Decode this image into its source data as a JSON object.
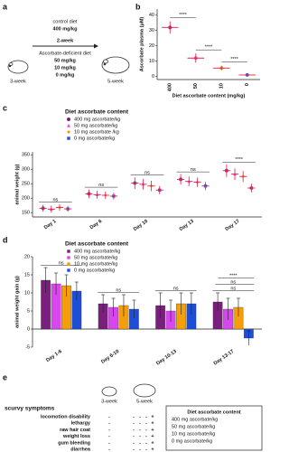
{
  "panel_a": {
    "label": "a",
    "start": "3-week",
    "end": "5-week",
    "control_title": "control diet",
    "control_dose": "400 mg/kg",
    "duration": "2-week",
    "deficient_title": "Ascorbate-deficient diet",
    "deficient_doses": [
      "50 mg/kg",
      "10 mg/kg",
      "0 mg/kg"
    ],
    "control_color": "#7b1f7e",
    "dose_colors": [
      "#d946ef",
      "#f59e0b",
      "#1d4ed8"
    ]
  },
  "chart_data": [
    {
      "type": "dot",
      "label": "b",
      "xlabel": "Diet ascorbate content (mg/kg)",
      "ylabel": "Ascorbate plasma (μM)",
      "categories": [
        "400",
        "50",
        "10",
        "0"
      ],
      "series": [
        {
          "values": [
            32,
            12,
            5.5,
            1
          ],
          "errors": [
            4,
            3,
            1.5,
            0.8
          ]
        }
      ],
      "colors": [
        "#7b1f7e",
        "#d946ef",
        "#f59e0b",
        "#1d4ed8"
      ],
      "ylim": [
        -2,
        44
      ],
      "yticks": [
        0,
        10,
        20,
        30,
        40
      ],
      "annotations": [
        "****",
        "****",
        "****"
      ]
    },
    {
      "type": "dot",
      "label": "c",
      "ylabel": "animal weight (g)",
      "legend_title": "Diet ascorbate content",
      "categories": [
        "Day 1",
        "Day 6",
        "Day 10",
        "Day 13",
        "Day 17"
      ],
      "series": [
        {
          "name": "400 mg ascorbate/kg",
          "color": "#7b1f7e",
          "marker": "circle",
          "values": [
            165,
            215,
            252,
            265,
            295
          ],
          "errors": [
            12,
            15,
            20,
            18,
            22
          ]
        },
        {
          "name": "50 mg ascorbate/kg",
          "color": "#d946ef",
          "marker": "triangle",
          "values": [
            162,
            212,
            248,
            258,
            283
          ],
          "errors": [
            12,
            14,
            18,
            17,
            20
          ]
        },
        {
          "name": "10 mg ascorbate /kg",
          "color": "#f59e0b",
          "marker": "diamond",
          "values": [
            168,
            210,
            242,
            255,
            275
          ],
          "errors": [
            11,
            13,
            18,
            16,
            19
          ]
        },
        {
          "name": "0 mg ascorbate/kg",
          "color": "#1d4ed8",
          "marker": "square",
          "values": [
            163,
            207,
            228,
            242,
            235
          ],
          "errors": [
            10,
            12,
            14,
            14,
            15
          ]
        }
      ],
      "ylim": [
        135,
        360
      ],
      "yticks": [
        150,
        200,
        250,
        300,
        350
      ],
      "annotations": [
        "ns",
        "ns",
        "ns",
        "ns",
        "****"
      ]
    },
    {
      "type": "bar",
      "label": "d",
      "ylabel": "animal weight gain (g)",
      "legend_title": "Diet ascorbate content",
      "categories": [
        "Day 1-6",
        "Day 6-10",
        "Day 10-13",
        "Day 13-17"
      ],
      "series": [
        {
          "name": "400 mg ascorbate/kg",
          "color": "#7b1f7e",
          "values": [
            13.5,
            7,
            6.5,
            7.5
          ],
          "errors": [
            3.5,
            2.5,
            3.5,
            2.5
          ]
        },
        {
          "name": "50 mg ascorbate/kg",
          "color": "#d946ef",
          "values": [
            12.5,
            6,
            5,
            5.5
          ],
          "errors": [
            3,
            2.5,
            3,
            3
          ]
        },
        {
          "name": "10 mg ascorbate/kg",
          "color": "#f59e0b",
          "values": [
            12,
            6.5,
            7,
            6
          ],
          "errors": [
            3,
            3,
            3,
            2.5
          ]
        },
        {
          "name": "0 mg ascorbate/kg",
          "color": "#1d4ed8",
          "values": [
            10.5,
            5.5,
            7,
            -2.5
          ],
          "errors": [
            2.5,
            2.5,
            3,
            2
          ]
        }
      ],
      "ylim": [
        -5,
        20
      ],
      "yticks": [
        -5,
        0,
        5,
        10,
        15,
        20
      ],
      "annotations": [
        [
          "ns"
        ],
        [
          "ns"
        ],
        [
          "ns"
        ],
        [
          "ns",
          "ns",
          "****"
        ]
      ]
    }
  ],
  "panel_e": {
    "label": "e",
    "stages": [
      "3-week",
      "5-week"
    ],
    "heading": "scurvy symptoms",
    "rows": [
      {
        "symptom": "locomotion disability",
        "week3": "-",
        "week5": [
          "-",
          "-",
          "-",
          "+"
        ]
      },
      {
        "symptom": "lethargy",
        "week3": "-",
        "week5": [
          "-",
          "-",
          "-",
          "+"
        ]
      },
      {
        "symptom": "raw hair coat",
        "week3": "-",
        "week5": [
          "-",
          "-",
          "-",
          "+"
        ]
      },
      {
        "symptom": "weight loss",
        "week3": "-",
        "week5": [
          "-",
          "-",
          "-",
          "+"
        ]
      },
      {
        "symptom": "gum bleeding",
        "week3": "-",
        "week5": [
          "-",
          "-",
          "-",
          "+"
        ]
      },
      {
        "symptom": "diarrhea",
        "week3": "-",
        "week5": [
          "-",
          "-",
          "-",
          "+"
        ]
      }
    ],
    "legend_title": "Diet ascorbate content",
    "legend": [
      "400 mg ascorbate/kg",
      "50 mg ascorbate/kg",
      "10 mg ascorbate/kg",
      "0 mg ascorbate/kg"
    ],
    "colors": [
      "#7b1f7e",
      "#d946ef",
      "#f59e0b",
      "#1d4ed8"
    ]
  }
}
